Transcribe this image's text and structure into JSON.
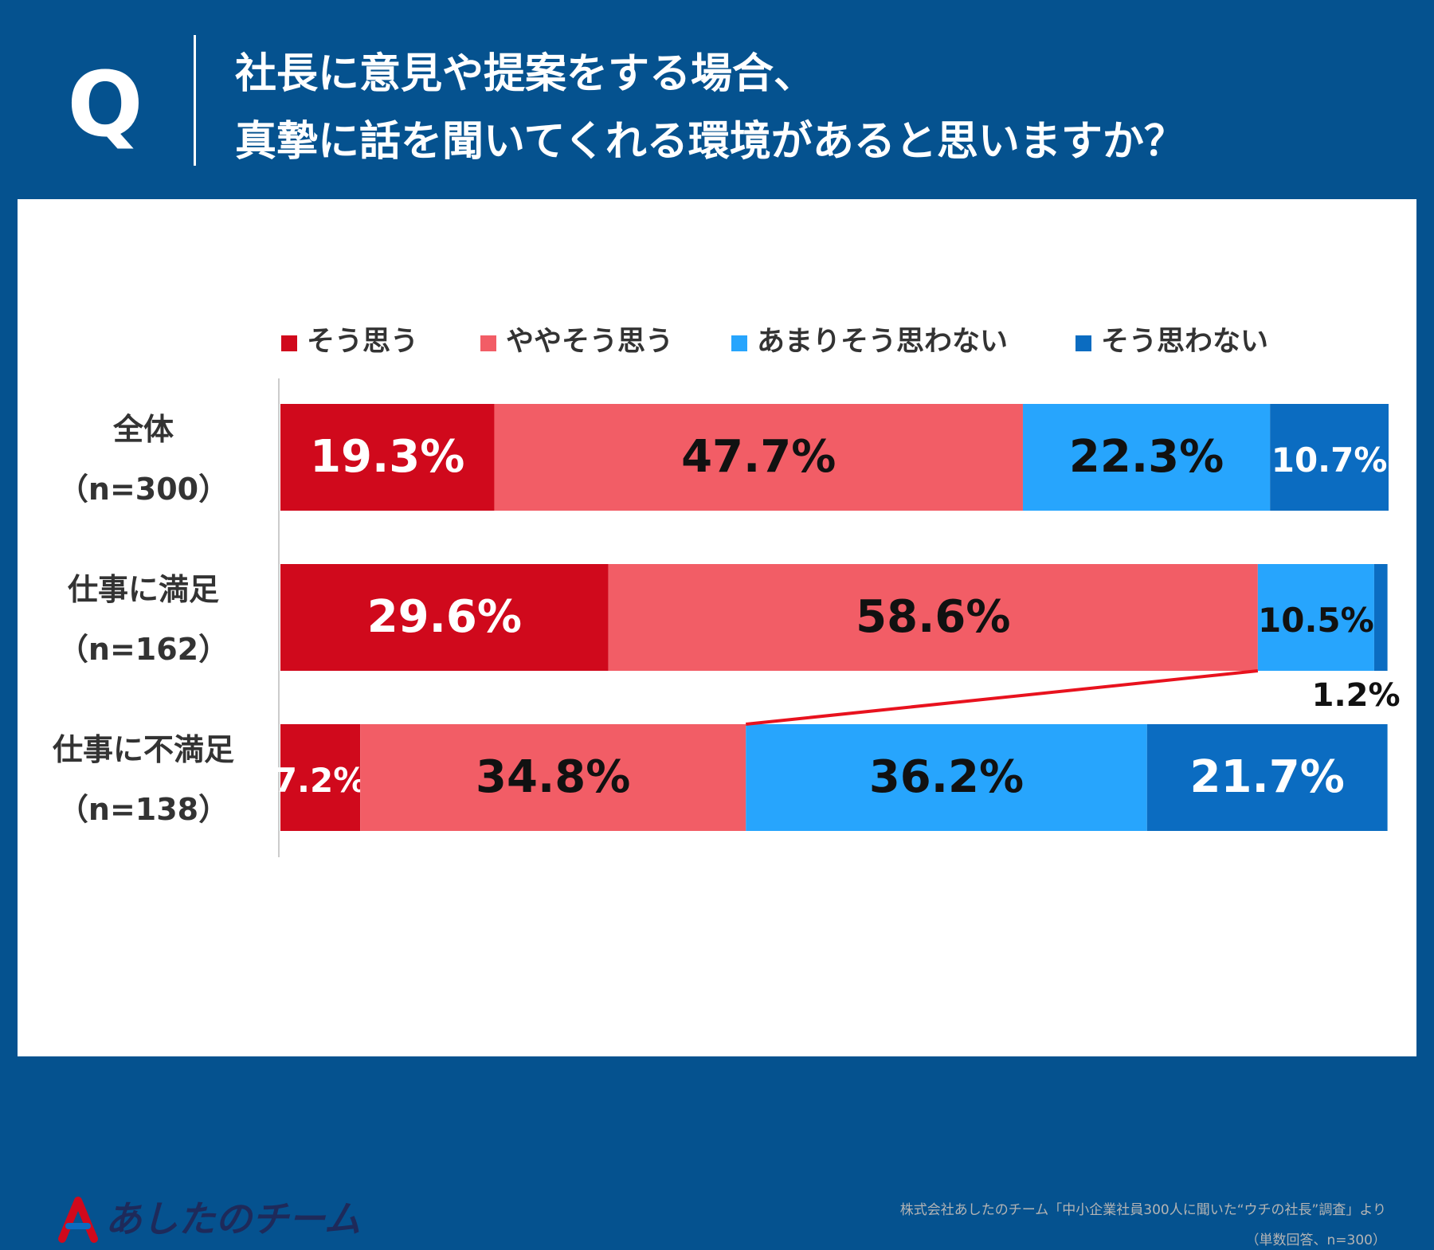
{
  "header": {
    "q_letter": "Q",
    "question_line1": "社長に意見や提案をする場合、",
    "question_line2": "真摯に話を聞いてくれる環境があると思いますか？"
  },
  "chart_data": {
    "type": "bar",
    "stacked": true,
    "orientation": "horizontal",
    "percent": true,
    "categories": [
      {
        "label": "全体",
        "n": "（n=300）"
      },
      {
        "label": "仕事に満足",
        "n": "（n=162）"
      },
      {
        "label": "仕事に不満足",
        "n": "（n=138）"
      }
    ],
    "series": [
      {
        "name": "そう思う",
        "color": "#d0091c",
        "values": [
          19.3,
          29.6,
          7.2
        ],
        "labels": [
          "19.3%",
          "29.6%",
          "7.2%"
        ],
        "text_colors": [
          "#ffffff",
          "#ffffff",
          "#ffffff"
        ]
      },
      {
        "name": "ややそう思う",
        "color": "#f25d66",
        "values": [
          47.7,
          58.6,
          34.8
        ],
        "labels": [
          "47.7%",
          "58.6%",
          "34.8%"
        ],
        "text_colors": [
          "#111111",
          "#111111",
          "#111111"
        ]
      },
      {
        "name": "あまりそう思わない",
        "color": "#27a5fd",
        "values": [
          22.3,
          10.5,
          36.2
        ],
        "labels": [
          "22.3%",
          "10.5%",
          "36.2%"
        ],
        "text_colors": [
          "#111111",
          "#111111",
          "#111111"
        ]
      },
      {
        "name": "そう思わない",
        "color": "#0b6cc1",
        "values": [
          10.7,
          1.2,
          21.7
        ],
        "labels": [
          "10.7%",
          "1.2%",
          "21.7%"
        ],
        "text_colors": [
          "#ffffff",
          "#111111",
          "#ffffff"
        ]
      }
    ],
    "legend": "top",
    "annotations": [
      "trend-line connecting ややそう思う end of 仕事に満足 and 仕事に不満足"
    ]
  },
  "footer": {
    "logo_text": "あしたのチーム",
    "source": "株式会社あしたのチーム「中小企業社員300人に聞いた“ウチの社長”調査」より",
    "note": "（単数回答、n=300）"
  }
}
